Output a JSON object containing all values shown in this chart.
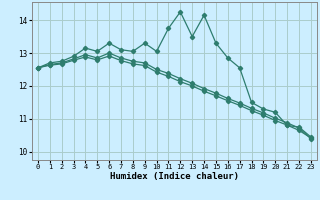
{
  "title": "",
  "xlabel": "Humidex (Indice chaleur)",
  "bg_color": "#cceeff",
  "line_color": "#2e7d6e",
  "grid_color": "#aacccc",
  "xlim": [
    -0.5,
    23.5
  ],
  "ylim": [
    9.75,
    14.55
  ],
  "yticks": [
    10,
    11,
    12,
    13,
    14
  ],
  "xticks": [
    0,
    1,
    2,
    3,
    4,
    5,
    6,
    7,
    8,
    9,
    10,
    11,
    12,
    13,
    14,
    15,
    16,
    17,
    18,
    19,
    20,
    21,
    22,
    23
  ],
  "line1_x": [
    0,
    1,
    2,
    3,
    4,
    5,
    6,
    7,
    8,
    9,
    10,
    11,
    12,
    13,
    14,
    15,
    16,
    17,
    18,
    19,
    20,
    21,
    22,
    23
  ],
  "line1_y": [
    12.55,
    12.7,
    12.75,
    12.9,
    13.15,
    13.05,
    13.3,
    13.1,
    13.05,
    13.3,
    13.05,
    13.75,
    14.25,
    13.5,
    14.15,
    13.3,
    12.85,
    12.55,
    11.5,
    11.3,
    11.2,
    10.8,
    10.75,
    10.45
  ],
  "line2_x": [
    0,
    1,
    2,
    3,
    4,
    5,
    6,
    7,
    8,
    9,
    10,
    11,
    12,
    13,
    14,
    15,
    16,
    17,
    18,
    19,
    20,
    21,
    22,
    23
  ],
  "line2_y": [
    12.55,
    12.65,
    12.7,
    12.82,
    12.95,
    12.85,
    13.0,
    12.85,
    12.75,
    12.7,
    12.5,
    12.38,
    12.22,
    12.08,
    11.92,
    11.78,
    11.62,
    11.48,
    11.32,
    11.18,
    11.02,
    10.88,
    10.72,
    10.4
  ],
  "line3_x": [
    0,
    1,
    2,
    3,
    4,
    5,
    6,
    7,
    8,
    9,
    10,
    11,
    12,
    13,
    14,
    15,
    16,
    17,
    18,
    19,
    20,
    21,
    22,
    23
  ],
  "line3_y": [
    12.55,
    12.63,
    12.67,
    12.78,
    12.88,
    12.79,
    12.91,
    12.77,
    12.67,
    12.62,
    12.42,
    12.29,
    12.13,
    12.0,
    11.84,
    11.7,
    11.55,
    11.41,
    11.25,
    11.11,
    10.95,
    10.81,
    10.65,
    10.42
  ]
}
